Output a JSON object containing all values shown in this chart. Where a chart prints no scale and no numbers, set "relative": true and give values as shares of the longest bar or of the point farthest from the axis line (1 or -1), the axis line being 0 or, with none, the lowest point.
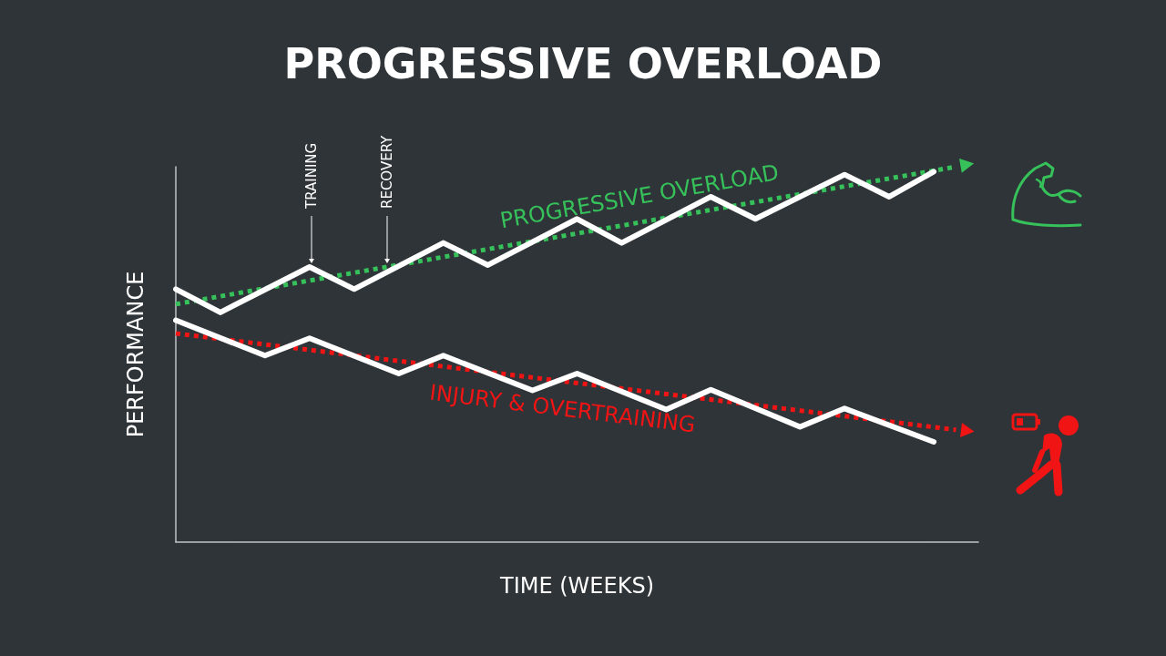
{
  "chart_data": {
    "type": "line",
    "title": "PROGRESSIVE OVERLOAD",
    "xlabel": "TIME (WEEKS)",
    "ylabel": "PERFORMANCE",
    "relative": true,
    "grid": false,
    "legend": false,
    "marker": "none",
    "annotations": [
      "TRAINING",
      "RECOVERY"
    ],
    "categories": [
      null,
      null,
      null,
      null,
      null,
      null,
      null,
      null,
      null,
      null,
      null,
      null,
      null,
      null,
      null,
      null,
      null,
      null,
      null,
      null,
      null,
      null,
      null,
      null,
      null,
      null,
      null,
      null,
      null,
      null,
      null,
      null,
      null,
      null,
      null,
      null,
      null
    ],
    "series": [
      {
        "color": "#ffffff",
        "line_style": "solid",
        "values": [
          0.674,
          null,
          0.612,
          null,
          null,
          null,
          0.733,
          null,
          0.674,
          null,
          null,
          null,
          0.797,
          null,
          0.738,
          null,
          null,
          null,
          0.861,
          null,
          0.797,
          null,
          null,
          null,
          0.92,
          null,
          0.861,
          null,
          null,
          null,
          0.979,
          null,
          0.92,
          null,
          0.987,
          null,
          null
        ]
      },
      {
        "color": "#ffffff",
        "line_style": "solid",
        "values": [
          0.591,
          null,
          null,
          null,
          0.497,
          null,
          0.543,
          null,
          null,
          null,
          0.449,
          null,
          0.497,
          null,
          null,
          null,
          0.404,
          null,
          0.449,
          null,
          null,
          null,
          0.353,
          null,
          0.406,
          null,
          null,
          null,
          0.307,
          null,
          0.356,
          null,
          null,
          null,
          0.267,
          null,
          null
        ]
      },
      {
        "name": "PROGRESSIVE OVERLOAD",
        "color": "#36c15a",
        "line_style": "dotted",
        "values": [
          0.634,
          null,
          null,
          null,
          null,
          null,
          null,
          null,
          null,
          null,
          null,
          null,
          null,
          null,
          null,
          null,
          null,
          null,
          null,
          null,
          null,
          null,
          null,
          null,
          null,
          null,
          null,
          null,
          null,
          null,
          null,
          null,
          null,
          null,
          null,
          1.0,
          null
        ]
      },
      {
        "name": "INJURY & OVERTRAINING",
        "color": "#f01414",
        "line_style": "dotted",
        "values": [
          0.556,
          null,
          null,
          null,
          null,
          null,
          null,
          null,
          null,
          null,
          null,
          null,
          null,
          null,
          null,
          null,
          null,
          null,
          null,
          null,
          null,
          null,
          null,
          null,
          null,
          null,
          null,
          null,
          null,
          null,
          null,
          null,
          null,
          null,
          null,
          0.299,
          null
        ]
      }
    ]
  }
}
